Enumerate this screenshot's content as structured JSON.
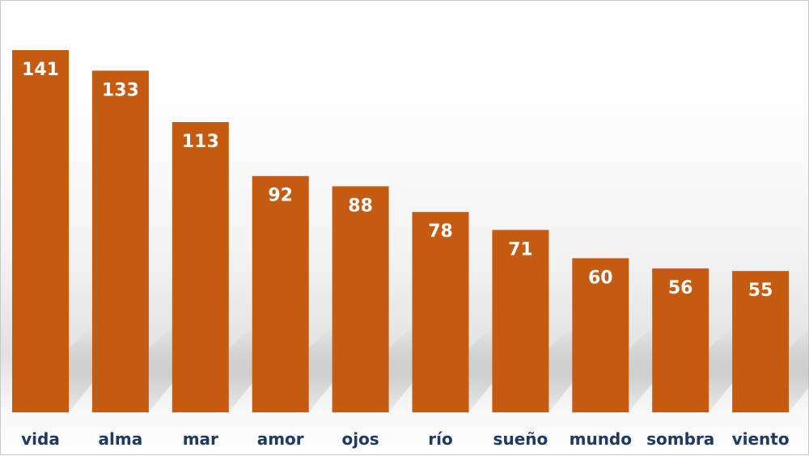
{
  "chart_data": {
    "type": "bar",
    "categories": [
      "vida",
      "alma",
      "mar",
      "amor",
      "ojos",
      "río",
      "sueño",
      "mundo",
      "sombra",
      "viento"
    ],
    "values": [
      141,
      133,
      113,
      92,
      88,
      78,
      71,
      60,
      56,
      55
    ],
    "ylim": [
      0,
      141
    ],
    "grid": false,
    "legend": "none",
    "data_labels": "inside-top",
    "bar_color": "#c55a11",
    "value_label_color": "#ffffff",
    "category_label_color": "#1f3864"
  }
}
